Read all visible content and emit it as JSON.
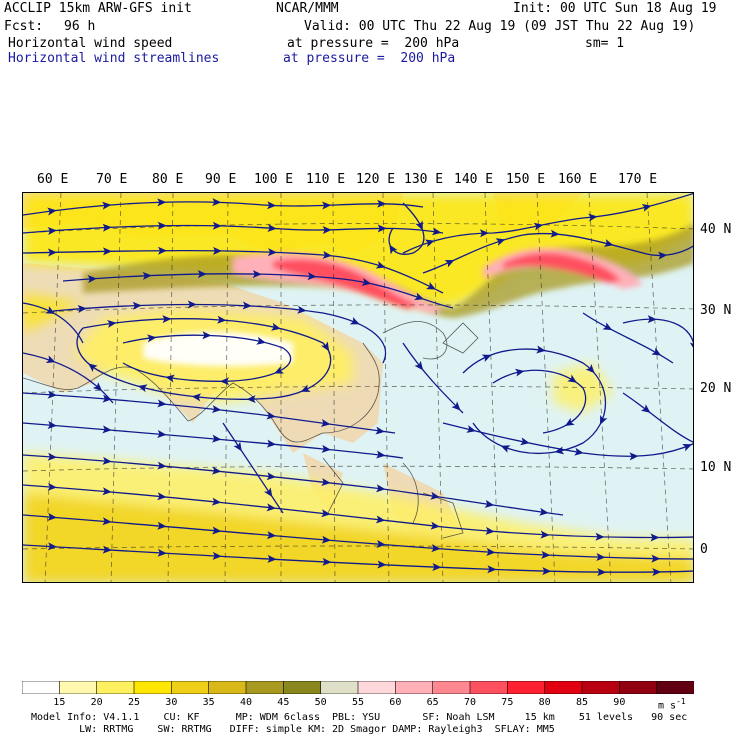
{
  "header": {
    "model_line": "ACCLIP 15km ARW-GFS init",
    "center": "NCAR/MMM",
    "init": "Init: 00 UTC Sun 18 Aug 19",
    "fcst_label": "Fcst:",
    "fcst_value": "96 h",
    "valid": "Valid: 00 UTC Thu 22 Aug 19 (09 JST Thu 22 Aug 19)",
    "field1_name": "Horizontal wind speed",
    "field1_level": "at pressure =  200 hPa",
    "field1_smooth": "sm= 1",
    "field2_name": "Horizontal wind streamlines",
    "field2_level": "at pressure =  200 hPa"
  },
  "map": {
    "lon_labels": [
      "60 E",
      "70 E",
      "80 E",
      "90 E",
      "100 E",
      "110 E",
      "120 E",
      "130 E",
      "140 E",
      "150 E",
      "160 E",
      "170 E"
    ],
    "lat_labels": [
      "40 N",
      "30 N",
      "20 N",
      "10 N",
      "0"
    ],
    "colors": {
      "ocean": "#dff3f5",
      "land": "#f0d9b0",
      "streamline": "#101a8c",
      "coast": "#333333"
    }
  },
  "colorbar": {
    "labels": [
      "15",
      "20",
      "25",
      "30",
      "35",
      "40",
      "45",
      "50",
      "55",
      "60",
      "65",
      "70",
      "75",
      "80",
      "85",
      "90"
    ],
    "unit": "m s",
    "unit_exp": "-1",
    "colors": [
      "#ffffff",
      "#fff9b0",
      "#fff060",
      "#ffe600",
      "#f0cf18",
      "#d9b81a",
      "#a89a20",
      "#88881e",
      "#e0e0c8",
      "#ffd8dc",
      "#ffb0b8",
      "#ff8890",
      "#ff5060",
      "#ff2030",
      "#e00010",
      "#b80010",
      "#900010",
      "#600010"
    ]
  },
  "footer": {
    "line1": "Model Info: V4.1.1    CU: KF      MP: WDM 6class  PBL: YSU       SF: Noah LSM     15 km    51 levels   90 sec",
    "line2": "        LW: RRTMG    SW: RRTMG   DIFF: simple KM: 2D Smagor DAMP: Rayleigh3  SFLAY: MM5"
  }
}
